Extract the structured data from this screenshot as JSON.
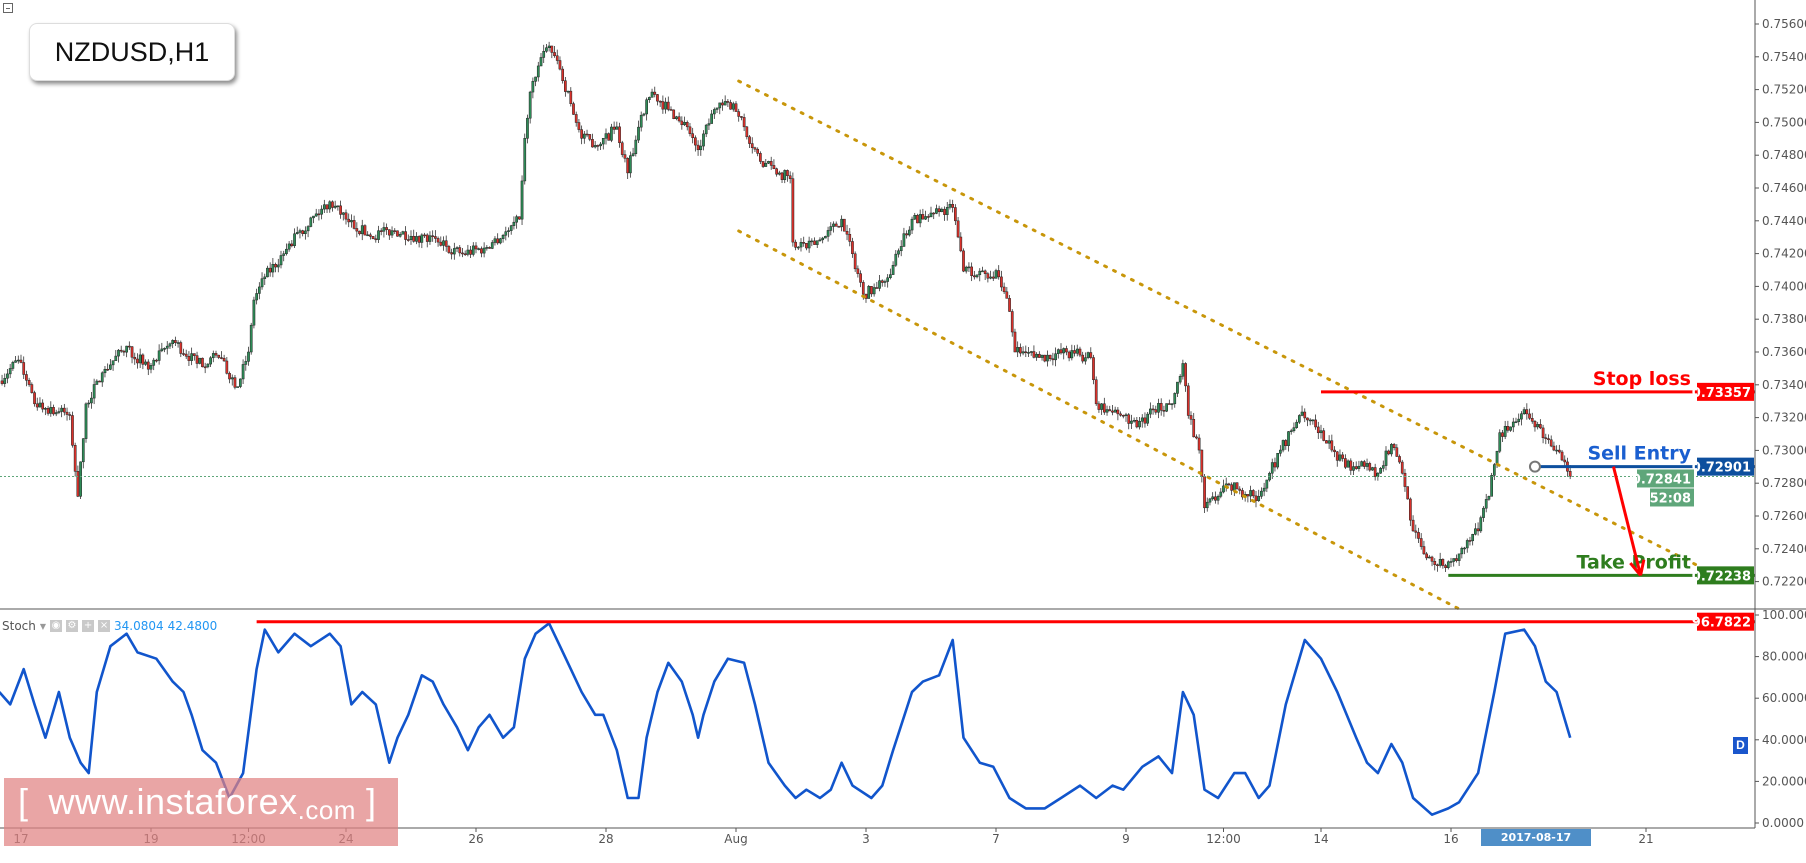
{
  "symbol": "NZDUSD,H1",
  "indicator": {
    "name": "Stoch",
    "value_k": "34.0804",
    "value_d": "42.4800",
    "badge": "D"
  },
  "watermark": {
    "bracket_open": "[",
    "text": "www.instaforex",
    "suffix": ".com",
    "bracket_close": "]"
  },
  "crosshair_date": "2017-08-17 10:00:00",
  "colors": {
    "up": "#2e8b57",
    "down": "#d9312b",
    "stop": "#ff0000",
    "entry": "#0d4f9e",
    "entry_text": "#1a5fd0",
    "target": "#2e7d1e",
    "channel": "#c8960a",
    "stoch": "#1155cc",
    "price_line": "#5fa67a"
  },
  "chart_data": [
    {
      "type": "candlestick",
      "title": "NZDUSD,H1",
      "ylim": [
        0.7214,
        0.7572
      ],
      "y_ticks": [
        "0.75600",
        "0.75400",
        "0.75200",
        "0.75000",
        "0.74800",
        "0.74600",
        "0.74400",
        "0.74200",
        "0.74000",
        "0.73800",
        "0.73600",
        "0.73400",
        "0.73200",
        "0.73000",
        "0.72800",
        "0.72600",
        "0.72400",
        "0.72200"
      ],
      "x_ticks": [
        {
          "label": "17",
          "t": "07-17 00"
        },
        {
          "label": "19",
          "t": "07-19 00"
        },
        {
          "label": "12:00",
          "t": "07-20 12"
        },
        {
          "label": "24",
          "t": "07-24 00"
        },
        {
          "label": "26",
          "t": "07-26 00"
        },
        {
          "label": "28",
          "t": "07-28 00"
        },
        {
          "label": "Aug",
          "t": "08-01 00"
        },
        {
          "label": "3",
          "t": "08-03 00"
        },
        {
          "label": "7",
          "t": "08-07 00"
        },
        {
          "label": "9",
          "t": "08-09 00"
        },
        {
          "label": "12:00",
          "t": "08-10 12"
        },
        {
          "label": "14",
          "t": "08-14 00"
        },
        {
          "label": "16",
          "t": "08-16 00"
        },
        {
          "label": "21",
          "t": "08-21 00"
        }
      ],
      "close_path": [
        [
          "07-14 16",
          0.73424
        ],
        [
          "07-14 23",
          0.73551
        ],
        [
          "07-17 05",
          0.73284
        ],
        [
          "07-17 18",
          0.73213
        ],
        [
          "07-17 21",
          0.7272
        ],
        [
          "07-18 00",
          0.73284
        ],
        [
          "07-18 07",
          0.73495
        ],
        [
          "07-18 15",
          0.73636
        ],
        [
          "07-18 23",
          0.73495
        ],
        [
          "07-19 08",
          0.73671
        ],
        [
          "07-19 17",
          0.7353
        ],
        [
          "07-20 01",
          0.73566
        ],
        [
          "07-20 08",
          0.73389
        ],
        [
          "07-20 12",
          0.736
        ],
        [
          "07-20 14",
          0.73917
        ],
        [
          "07-20 18",
          0.74058
        ],
        [
          "07-21 01",
          0.74199
        ],
        [
          "07-21 07",
          0.7434
        ],
        [
          "07-21 18",
          0.74516
        ],
        [
          "07-24 00",
          0.7441
        ],
        [
          "07-24 09",
          0.74305
        ],
        [
          "07-24 17",
          0.7434
        ],
        [
          "07-25 02",
          0.74305
        ],
        [
          "07-25 10",
          0.7427
        ],
        [
          "07-25 19",
          0.74199
        ],
        [
          "07-26 03",
          0.74234
        ],
        [
          "07-26 12",
          0.7434
        ],
        [
          "07-26 16",
          0.7441
        ],
        [
          "07-26 18",
          0.74903
        ],
        [
          "07-26 20",
          0.75185
        ],
        [
          "07-27 00",
          0.75396
        ],
        [
          "07-27 03",
          0.75466
        ],
        [
          "07-27 07",
          0.75325
        ],
        [
          "07-27 11",
          0.75114
        ],
        [
          "07-27 15",
          0.74903
        ],
        [
          "07-27 22",
          0.74868
        ],
        [
          "07-28 04",
          0.74973
        ],
        [
          "07-28 08",
          0.74692
        ],
        [
          "07-28 13",
          0.75044
        ],
        [
          "07-28 17",
          0.75185
        ],
        [
          "07-28 23",
          0.75079
        ],
        [
          "07-31 06",
          0.74973
        ],
        [
          "07-31 10",
          0.74833
        ],
        [
          "07-31 16",
          0.75079
        ],
        [
          "07-31 23",
          0.75114
        ],
        [
          "08-01 03",
          0.74973
        ],
        [
          "08-01 09",
          0.74762
        ],
        [
          "08-01 16",
          0.74692
        ],
        [
          "08-01 20",
          0.74657
        ],
        [
          "08-01 21",
          0.7427
        ],
        [
          "08-02 02",
          0.74234
        ],
        [
          "08-02 09",
          0.74305
        ],
        [
          "08-02 15",
          0.7441
        ],
        [
          "08-02 19",
          0.74199
        ],
        [
          "08-02 23",
          0.73953
        ],
        [
          "08-03 04",
          0.73988
        ],
        [
          "08-03 10",
          0.74129
        ],
        [
          "08-03 17",
          0.7441
        ],
        [
          "08-03 21",
          0.7441
        ],
        [
          "08-04 01",
          0.74445
        ],
        [
          "08-04 08",
          0.74481
        ],
        [
          "08-04 12",
          0.74093
        ],
        [
          "08-04 18",
          0.74093
        ],
        [
          "08-07 01",
          0.74058
        ],
        [
          "08-07 05",
          0.73847
        ],
        [
          "08-07 07",
          0.736
        ],
        [
          "08-07 16",
          0.73566
        ],
        [
          "08-08 02",
          0.736
        ],
        [
          "08-08 11",
          0.73566
        ],
        [
          "08-08 13",
          0.73284
        ],
        [
          "08-08 17",
          0.73249
        ],
        [
          "08-08 23",
          0.73213
        ],
        [
          "08-09 04",
          0.73143
        ],
        [
          "08-09 10",
          0.73249
        ],
        [
          "08-09 17",
          0.73284
        ],
        [
          "08-09 21",
          0.7353
        ],
        [
          "08-09 23",
          0.73213
        ],
        [
          "08-10 03",
          0.73002
        ],
        [
          "08-10 05",
          0.7265
        ],
        [
          "08-10 10",
          0.7272
        ],
        [
          "08-10 14",
          0.72791
        ],
        [
          "08-10 18",
          0.72756
        ],
        [
          "08-11 01",
          0.7272
        ],
        [
          "08-11 05",
          0.72861
        ],
        [
          "08-11 09",
          0.73002
        ],
        [
          "08-11 16",
          0.73213
        ],
        [
          "08-11 22",
          0.73143
        ],
        [
          "08-14 04",
          0.73002
        ],
        [
          "08-14 09",
          0.72897
        ],
        [
          "08-14 15",
          0.72932
        ],
        [
          "08-14 21",
          0.72861
        ],
        [
          "08-15 02",
          0.73037
        ],
        [
          "08-15 06",
          0.72861
        ],
        [
          "08-15 10",
          0.72509
        ],
        [
          "08-15 14",
          0.72369
        ],
        [
          "08-15 21",
          0.72298
        ],
        [
          "08-16 03",
          0.72369
        ],
        [
          "08-16 10",
          0.72509
        ],
        [
          "08-16 14",
          0.7272
        ],
        [
          "08-16 18",
          0.73108
        ],
        [
          "08-16 22",
          0.73143
        ],
        [
          "08-17 03",
          0.73249
        ],
        [
          "08-17 07",
          0.73143
        ],
        [
          "08-17 11",
          0.73072
        ],
        [
          "08-17 15",
          0.73002
        ],
        [
          "08-17 20",
          0.72841
        ]
      ],
      "current_price": {
        "value": 0.72841,
        "label": "0.72841",
        "countdown": "52:08"
      },
      "levels": [
        {
          "name": "Stop loss",
          "value": 0.73357,
          "label": "0.73357",
          "from": "08-14 00"
        },
        {
          "name": "Sell Entry",
          "value": 0.72901,
          "label": "0.72901",
          "from": "08-17 07"
        },
        {
          "name": "Take Profit",
          "value": 0.72238,
          "label": "0.72238",
          "from": "08-15 23"
        }
      ],
      "channel": [
        {
          "from": [
            "08-01 01",
            0.75252
          ],
          "to": [
            "08-21 23",
            0.72265
          ]
        },
        {
          "from": [
            "08-01 01",
            0.74338
          ],
          "to": [
            "08-16 03",
            0.72033
          ]
        }
      ],
      "arrow": {
        "from": [
          "08-18 12",
          0.72901
        ],
        "to": [
          "08-18 22",
          0.72238
        ]
      }
    },
    {
      "type": "line",
      "title": "Stoch",
      "ylim": [
        0,
        100
      ],
      "y_ticks": [
        "100.0000",
        "80.0000",
        "60.0000",
        "40.0000",
        "20.0000",
        "0.0000"
      ],
      "level": {
        "value": 96.7822,
        "label": "96.7822",
        "from": "07-20 15"
      },
      "series": [
        [
          "07-14 16",
          63
        ],
        [
          "07-14 20",
          57
        ],
        [
          "07-17 01",
          74
        ],
        [
          "07-17 05",
          57
        ],
        [
          "07-17 09",
          41
        ],
        [
          "07-17 14",
          63
        ],
        [
          "07-17 18",
          41
        ],
        [
          "07-17 22",
          29
        ],
        [
          "07-18 01",
          24
        ],
        [
          "07-18 04",
          63
        ],
        [
          "07-18 09",
          85
        ],
        [
          "07-18 15",
          91
        ],
        [
          "07-18 19",
          82
        ],
        [
          "07-19 02",
          79
        ],
        [
          "07-19 08",
          68
        ],
        [
          "07-19 12",
          63
        ],
        [
          "07-19 15",
          52
        ],
        [
          "07-19 19",
          35
        ],
        [
          "07-20 00",
          29
        ],
        [
          "07-20 05",
          12
        ],
        [
          "07-20 10",
          24
        ],
        [
          "07-20 15",
          74
        ],
        [
          "07-20 18",
          93
        ],
        [
          "07-20 23",
          82
        ],
        [
          "07-21 05",
          91
        ],
        [
          "07-21 11",
          85
        ],
        [
          "07-21 18",
          91
        ],
        [
          "07-21 22",
          85
        ],
        [
          "07-24 02",
          57
        ],
        [
          "07-24 06",
          63
        ],
        [
          "07-24 11",
          57
        ],
        [
          "07-24 16",
          29
        ],
        [
          "07-24 19",
          41
        ],
        [
          "07-24 23",
          52
        ],
        [
          "07-25 04",
          71
        ],
        [
          "07-25 08",
          68
        ],
        [
          "07-25 12",
          57
        ],
        [
          "07-25 17",
          46
        ],
        [
          "07-25 21",
          35
        ],
        [
          "07-26 01",
          46
        ],
        [
          "07-26 05",
          52
        ],
        [
          "07-26 10",
          41
        ],
        [
          "07-26 14",
          46
        ],
        [
          "07-26 18",
          79
        ],
        [
          "07-26 22",
          91
        ],
        [
          "07-27 03",
          96
        ],
        [
          "07-27 07",
          85
        ],
        [
          "07-27 11",
          74
        ],
        [
          "07-27 15",
          63
        ],
        [
          "07-27 20",
          52
        ],
        [
          "07-27 23",
          52
        ],
        [
          "07-28 04",
          35
        ],
        [
          "07-28 08",
          12
        ],
        [
          "07-28 12",
          12
        ],
        [
          "07-28 15",
          41
        ],
        [
          "07-28 19",
          63
        ],
        [
          "07-28 23",
          77
        ],
        [
          "07-31 04",
          68
        ],
        [
          "07-31 08",
          52
        ],
        [
          "07-31 10",
          41
        ],
        [
          "07-31 12",
          52
        ],
        [
          "07-31 16",
          68
        ],
        [
          "07-31 21",
          79
        ],
        [
          "08-01 03",
          77
        ],
        [
          "08-01 07",
          57
        ],
        [
          "08-01 12",
          29
        ],
        [
          "08-01 18",
          18
        ],
        [
          "08-01 22",
          12
        ],
        [
          "08-02 02",
          16
        ],
        [
          "08-02 07",
          12
        ],
        [
          "08-02 11",
          16
        ],
        [
          "08-02 15",
          29
        ],
        [
          "08-02 19",
          18
        ],
        [
          "08-03 02",
          12
        ],
        [
          "08-03 06",
          18
        ],
        [
          "08-03 10",
          35
        ],
        [
          "08-03 17",
          63
        ],
        [
          "08-03 21",
          68
        ],
        [
          "08-04 03",
          71
        ],
        [
          "08-04 08",
          88
        ],
        [
          "08-04 12",
          41
        ],
        [
          "08-04 18",
          29
        ],
        [
          "08-04 23",
          27
        ],
        [
          "08-07 05",
          12
        ],
        [
          "08-07 11",
          7
        ],
        [
          "08-07 18",
          7
        ],
        [
          "08-08 00",
          12
        ],
        [
          "08-08 07",
          18
        ],
        [
          "08-08 13",
          12
        ],
        [
          "08-08 19",
          18
        ],
        [
          "08-08 23",
          16
        ],
        [
          "08-09 06",
          27
        ],
        [
          "08-09 12",
          32
        ],
        [
          "08-09 17",
          24
        ],
        [
          "08-09 21",
          63
        ],
        [
          "08-10 01",
          52
        ],
        [
          "08-10 05",
          16
        ],
        [
          "08-10 10",
          12
        ],
        [
          "08-10 16",
          24
        ],
        [
          "08-10 20",
          24
        ],
        [
          "08-11 01",
          12
        ],
        [
          "08-11 05",
          18
        ],
        [
          "08-11 11",
          57
        ],
        [
          "08-11 18",
          88
        ],
        [
          "08-14 00",
          79
        ],
        [
          "08-14 06",
          63
        ],
        [
          "08-14 13",
          41
        ],
        [
          "08-14 17",
          29
        ],
        [
          "08-14 21",
          24
        ],
        [
          "08-15 02",
          38
        ],
        [
          "08-15 06",
          29
        ],
        [
          "08-15 10",
          12
        ],
        [
          "08-15 17",
          4
        ],
        [
          "08-15 23",
          7
        ],
        [
          "08-16 03",
          10
        ],
        [
          "08-16 10",
          24
        ],
        [
          "08-16 16",
          63
        ],
        [
          "08-16 20",
          91
        ],
        [
          "08-17 03",
          93
        ],
        [
          "08-17 07",
          85
        ],
        [
          "08-17 11",
          68
        ],
        [
          "08-17 15",
          63
        ],
        [
          "08-17 20",
          41
        ]
      ]
    }
  ]
}
